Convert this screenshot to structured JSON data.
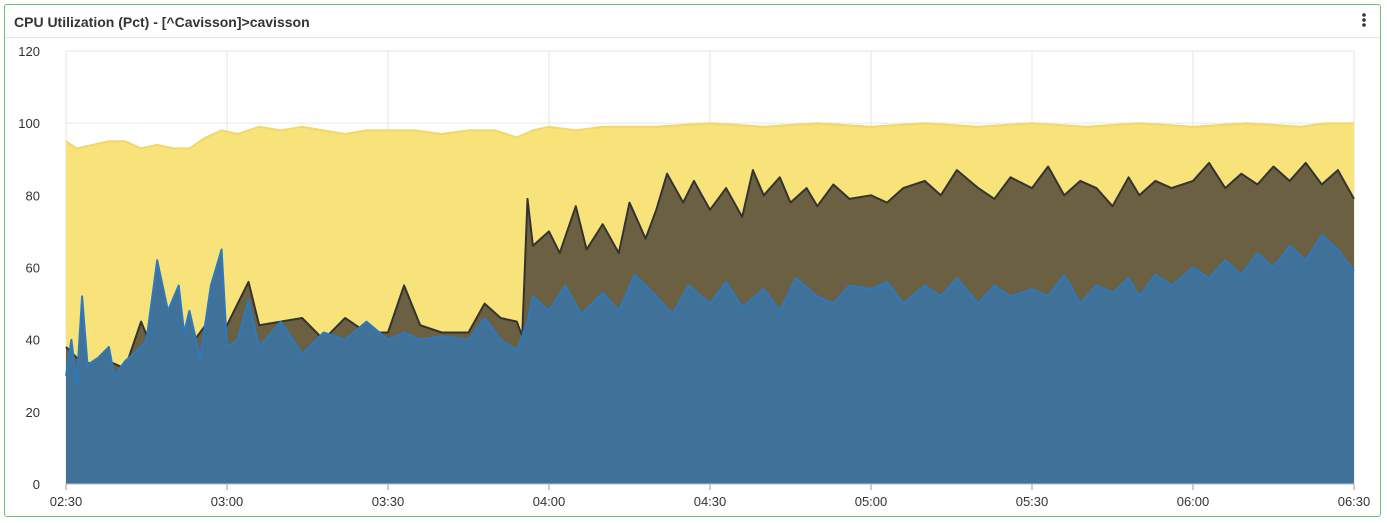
{
  "panel": {
    "title": "CPU Utilization (Pct) - [^Cavisson]>cavisson",
    "menu_icon": "more-vertical-icon"
  },
  "chart_data": {
    "type": "area",
    "title": "CPU Utilization (Pct) - [^Cavisson]>cavisson",
    "xlabel": "",
    "ylabel": "",
    "x_range": [
      "02:30",
      "06:30"
    ],
    "x_ticks": [
      "02:30",
      "03:00",
      "03:30",
      "04:00",
      "04:30",
      "05:00",
      "05:30",
      "06:00",
      "06:30"
    ],
    "ylim": [
      0,
      120
    ],
    "y_ticks": [
      0,
      20,
      40,
      60,
      80,
      100,
      120
    ],
    "grid": true,
    "legend": "none",
    "series": [
      {
        "color": "#f7e37a",
        "line_color": "#f2d76a",
        "points": [
          [
            "02:30",
            95
          ],
          [
            "02:32",
            93
          ],
          [
            "02:35",
            94
          ],
          [
            "02:38",
            95
          ],
          [
            "02:41",
            95
          ],
          [
            "02:44",
            93
          ],
          [
            "02:47",
            94
          ],
          [
            "02:50",
            93
          ],
          [
            "02:53",
            93
          ],
          [
            "02:56",
            96
          ],
          [
            "02:59",
            98
          ],
          [
            "03:02",
            97
          ],
          [
            "03:06",
            99
          ],
          [
            "03:10",
            98
          ],
          [
            "03:14",
            99
          ],
          [
            "03:18",
            98
          ],
          [
            "03:22",
            97
          ],
          [
            "03:26",
            98
          ],
          [
            "03:30",
            98
          ],
          [
            "03:35",
            98
          ],
          [
            "03:40",
            97
          ],
          [
            "03:45",
            98
          ],
          [
            "03:50",
            98
          ],
          [
            "03:54",
            96
          ],
          [
            "03:57",
            98
          ],
          [
            "04:00",
            99
          ],
          [
            "04:05",
            98
          ],
          [
            "04:10",
            99
          ],
          [
            "04:20",
            99
          ],
          [
            "04:30",
            100
          ],
          [
            "04:40",
            99
          ],
          [
            "04:50",
            100
          ],
          [
            "05:00",
            99
          ],
          [
            "05:10",
            100
          ],
          [
            "05:20",
            99
          ],
          [
            "05:30",
            100
          ],
          [
            "05:40",
            99
          ],
          [
            "05:50",
            100
          ],
          [
            "06:00",
            99
          ],
          [
            "06:10",
            100
          ],
          [
            "06:20",
            99
          ],
          [
            "06:25",
            100
          ],
          [
            "06:30",
            100
          ]
        ]
      },
      {
        "color": "#6b6142",
        "line_color": "#333333",
        "points": [
          [
            "02:30",
            38
          ],
          [
            "02:32",
            35
          ],
          [
            "02:35",
            33
          ],
          [
            "02:38",
            34
          ],
          [
            "02:41",
            32
          ],
          [
            "02:44",
            45
          ],
          [
            "02:47",
            34
          ],
          [
            "02:50",
            43
          ],
          [
            "02:53",
            38
          ],
          [
            "02:56",
            44
          ],
          [
            "02:59",
            41
          ],
          [
            "03:02",
            50
          ],
          [
            "03:04",
            56
          ],
          [
            "03:06",
            44
          ],
          [
            "03:10",
            45
          ],
          [
            "03:14",
            46
          ],
          [
            "03:18",
            40
          ],
          [
            "03:22",
            46
          ],
          [
            "03:26",
            42
          ],
          [
            "03:30",
            42
          ],
          [
            "03:33",
            55
          ],
          [
            "03:36",
            44
          ],
          [
            "03:40",
            42
          ],
          [
            "03:45",
            42
          ],
          [
            "03:48",
            50
          ],
          [
            "03:51",
            46
          ],
          [
            "03:54",
            45
          ],
          [
            "03:55",
            41
          ],
          [
            "03:56",
            79
          ],
          [
            "03:57",
            66
          ],
          [
            "04:00",
            70
          ],
          [
            "04:02",
            64
          ],
          [
            "04:05",
            77
          ],
          [
            "04:07",
            65
          ],
          [
            "04:10",
            72
          ],
          [
            "04:13",
            64
          ],
          [
            "04:15",
            78
          ],
          [
            "04:18",
            68
          ],
          [
            "04:20",
            76
          ],
          [
            "04:22",
            86
          ],
          [
            "04:25",
            78
          ],
          [
            "04:27",
            84
          ],
          [
            "04:30",
            76
          ],
          [
            "04:33",
            82
          ],
          [
            "04:36",
            74
          ],
          [
            "04:38",
            87
          ],
          [
            "04:40",
            80
          ],
          [
            "04:43",
            85
          ],
          [
            "04:45",
            78
          ],
          [
            "04:48",
            82
          ],
          [
            "04:50",
            77
          ],
          [
            "04:53",
            83
          ],
          [
            "04:56",
            79
          ],
          [
            "05:00",
            80
          ],
          [
            "05:03",
            78
          ],
          [
            "05:06",
            82
          ],
          [
            "05:10",
            84
          ],
          [
            "05:13",
            80
          ],
          [
            "05:16",
            87
          ],
          [
            "05:20",
            82
          ],
          [
            "05:23",
            79
          ],
          [
            "05:26",
            85
          ],
          [
            "05:30",
            82
          ],
          [
            "05:33",
            88
          ],
          [
            "05:36",
            80
          ],
          [
            "05:39",
            84
          ],
          [
            "05:42",
            82
          ],
          [
            "05:45",
            77
          ],
          [
            "05:48",
            85
          ],
          [
            "05:50",
            80
          ],
          [
            "05:53",
            84
          ],
          [
            "05:56",
            82
          ],
          [
            "06:00",
            84
          ],
          [
            "06:03",
            89
          ],
          [
            "06:06",
            82
          ],
          [
            "06:09",
            86
          ],
          [
            "06:12",
            83
          ],
          [
            "06:15",
            88
          ],
          [
            "06:18",
            84
          ],
          [
            "06:21",
            89
          ],
          [
            "06:24",
            83
          ],
          [
            "06:27",
            87
          ],
          [
            "06:30",
            79
          ]
        ]
      },
      {
        "color": "#3f7199",
        "line_color": "#2e79bd",
        "points": [
          [
            "02:30",
            30
          ],
          [
            "02:31",
            40
          ],
          [
            "02:32",
            28
          ],
          [
            "02:33",
            52
          ],
          [
            "02:34",
            33
          ],
          [
            "02:36",
            35
          ],
          [
            "02:38",
            38
          ],
          [
            "02:39",
            30
          ],
          [
            "02:41",
            34
          ],
          [
            "02:44",
            38
          ],
          [
            "02:45",
            40
          ],
          [
            "02:47",
            62
          ],
          [
            "02:49",
            48
          ],
          [
            "02:51",
            55
          ],
          [
            "02:52",
            42
          ],
          [
            "02:53",
            48
          ],
          [
            "02:55",
            35
          ],
          [
            "02:57",
            55
          ],
          [
            "02:59",
            65
          ],
          [
            "03:00",
            38
          ],
          [
            "03:02",
            40
          ],
          [
            "03:04",
            51
          ],
          [
            "03:06",
            38
          ],
          [
            "03:10",
            45
          ],
          [
            "03:14",
            36
          ],
          [
            "03:18",
            42
          ],
          [
            "03:22",
            40
          ],
          [
            "03:26",
            45
          ],
          [
            "03:30",
            40
          ],
          [
            "03:33",
            42
          ],
          [
            "03:36",
            40
          ],
          [
            "03:40",
            41
          ],
          [
            "03:45",
            40
          ],
          [
            "03:48",
            46
          ],
          [
            "03:51",
            40
          ],
          [
            "03:54",
            37
          ],
          [
            "03:56",
            45
          ],
          [
            "03:57",
            52
          ],
          [
            "04:00",
            48
          ],
          [
            "04:03",
            55
          ],
          [
            "04:06",
            47
          ],
          [
            "04:10",
            53
          ],
          [
            "04:13",
            48
          ],
          [
            "04:16",
            58
          ],
          [
            "04:20",
            52
          ],
          [
            "04:23",
            47
          ],
          [
            "04:26",
            55
          ],
          [
            "04:30",
            50
          ],
          [
            "04:33",
            56
          ],
          [
            "04:36",
            49
          ],
          [
            "04:40",
            54
          ],
          [
            "04:43",
            48
          ],
          [
            "04:46",
            57
          ],
          [
            "04:50",
            52
          ],
          [
            "04:53",
            50
          ],
          [
            "04:56",
            55
          ],
          [
            "05:00",
            54
          ],
          [
            "05:03",
            56
          ],
          [
            "05:06",
            50
          ],
          [
            "05:10",
            55
          ],
          [
            "05:13",
            52
          ],
          [
            "05:16",
            57
          ],
          [
            "05:20",
            50
          ],
          [
            "05:23",
            55
          ],
          [
            "05:26",
            52
          ],
          [
            "05:30",
            54
          ],
          [
            "05:33",
            52
          ],
          [
            "05:36",
            58
          ],
          [
            "05:39",
            50
          ],
          [
            "05:42",
            55
          ],
          [
            "05:45",
            53
          ],
          [
            "05:48",
            57
          ],
          [
            "05:50",
            52
          ],
          [
            "05:53",
            58
          ],
          [
            "05:56",
            55
          ],
          [
            "06:00",
            60
          ],
          [
            "06:03",
            57
          ],
          [
            "06:06",
            62
          ],
          [
            "06:09",
            58
          ],
          [
            "06:12",
            64
          ],
          [
            "06:15",
            60
          ],
          [
            "06:18",
            66
          ],
          [
            "06:21",
            62
          ],
          [
            "06:24",
            69
          ],
          [
            "06:27",
            65
          ],
          [
            "06:30",
            59
          ]
        ]
      }
    ]
  }
}
